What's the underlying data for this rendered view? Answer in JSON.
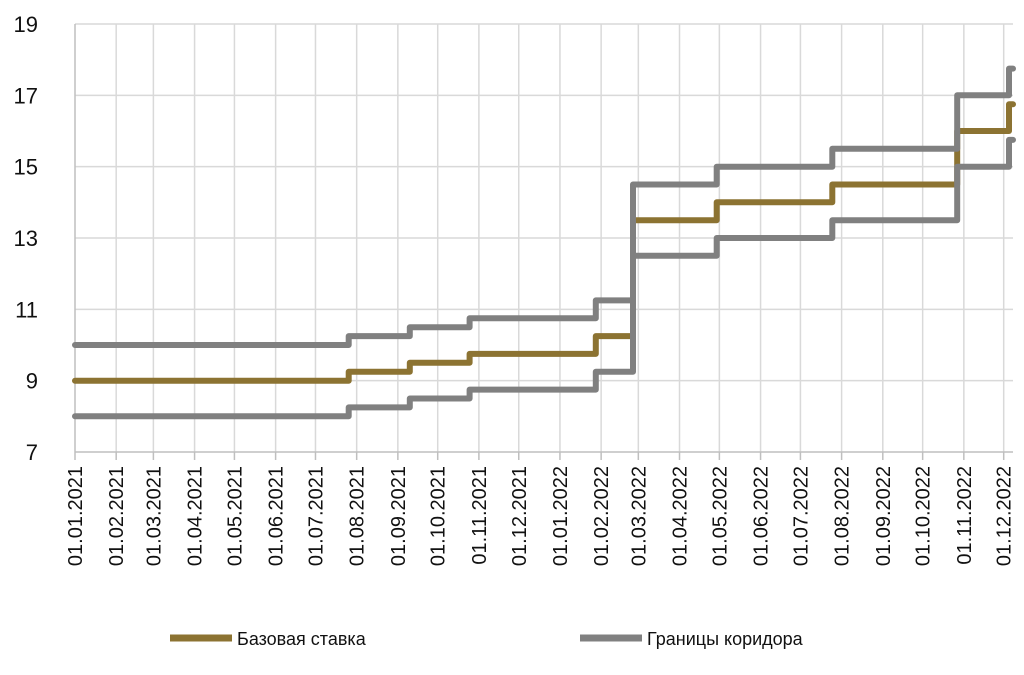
{
  "chart_data": {
    "type": "line",
    "step": true,
    "title": "",
    "xlabel": "",
    "ylabel": "",
    "ylim": [
      7,
      19
    ],
    "yticks": [
      "7",
      "9",
      "11",
      "13",
      "15",
      "17",
      "19"
    ],
    "xlim": [
      "2021-01-01",
      "2022-12-08"
    ],
    "xticks": [
      "01.01.2021",
      "01.02.2021",
      "01.03.2021",
      "01.04.2021",
      "01.05.2021",
      "01.06.2021",
      "01.07.2021",
      "01.08.2021",
      "01.09.2021",
      "01.10.2021",
      "01.11.2021",
      "01.12.2021",
      "01.01.2022",
      "01.02.2022",
      "01.03.2022",
      "01.04.2022",
      "01.05.2022",
      "01.06.2022",
      "01.07.2022",
      "01.08.2022",
      "01.09.2022",
      "01.10.2022",
      "01.11.2022",
      "01.12.2022"
    ],
    "grid": true,
    "legend_position": "bottom",
    "series": [
      {
        "name": "Базовая ставка",
        "color": "#8C7332",
        "points": [
          [
            "2021-01-01",
            9
          ],
          [
            "2021-07-26",
            9.25
          ],
          [
            "2021-09-10",
            9.5
          ],
          [
            "2021-10-25",
            9.75
          ],
          [
            "2022-01-28",
            10.25
          ],
          [
            "2022-02-25",
            13.5
          ],
          [
            "2022-04-29",
            14
          ],
          [
            "2022-07-25",
            14.5
          ],
          [
            "2022-10-27",
            16
          ],
          [
            "2022-12-05",
            16.75
          ],
          [
            "2022-12-08",
            16.75
          ]
        ]
      },
      {
        "name": "Границы коридора",
        "color": "#808080",
        "points": [
          [
            "2021-01-01",
            10
          ],
          [
            "2021-07-26",
            10.25
          ],
          [
            "2021-09-10",
            10.5
          ],
          [
            "2021-10-25",
            10.75
          ],
          [
            "2022-01-28",
            11.25
          ],
          [
            "2022-02-25",
            14.5
          ],
          [
            "2022-04-29",
            15
          ],
          [
            "2022-07-25",
            15.5
          ],
          [
            "2022-10-27",
            17
          ],
          [
            "2022-12-05",
            17.75
          ],
          [
            "2022-12-08",
            17.75
          ]
        ]
      },
      {
        "name": "",
        "color": "#808080",
        "points": [
          [
            "2021-01-01",
            8
          ],
          [
            "2021-07-26",
            8.25
          ],
          [
            "2021-09-10",
            8.5
          ],
          [
            "2021-10-25",
            8.75
          ],
          [
            "2022-01-28",
            9.25
          ],
          [
            "2022-02-25",
            12.5
          ],
          [
            "2022-04-29",
            13
          ],
          [
            "2022-07-25",
            13.5
          ],
          [
            "2022-10-27",
            15
          ],
          [
            "2022-12-05",
            15.75
          ],
          [
            "2022-12-08",
            15.75
          ]
        ]
      }
    ],
    "legend": [
      "Базовая ставка",
      "Границы коридора"
    ]
  }
}
